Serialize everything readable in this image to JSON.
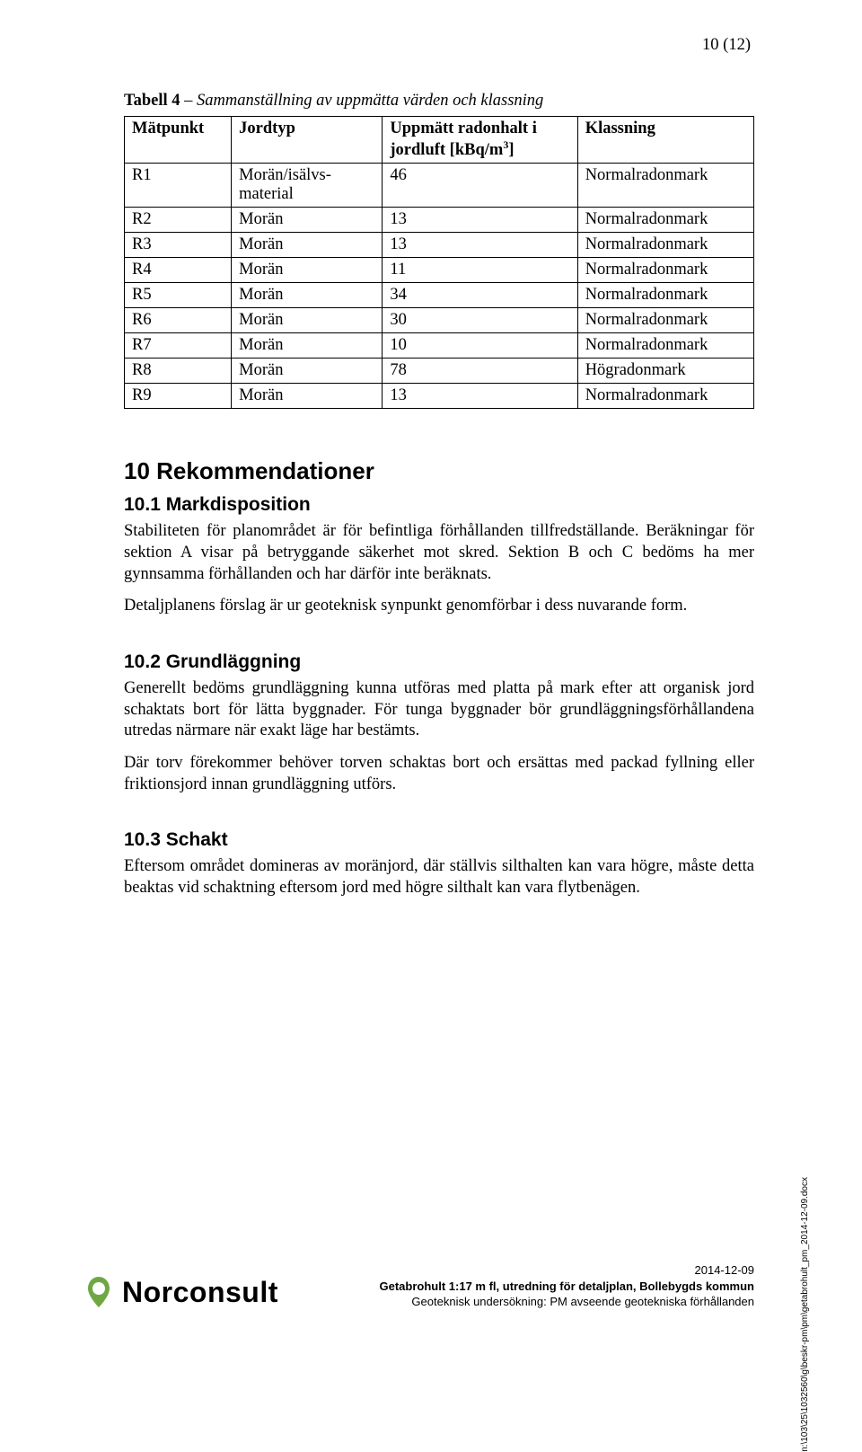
{
  "page_number": "10 (12)",
  "table_title_bold": "Tabell 4",
  "table_title_rest": " – Sammanställning av uppmätta värden och klassning",
  "table": {
    "headers": [
      "Mätpunkt",
      "Jordtyp",
      "Uppmätt radonhalt i jordluft [kBq/m",
      "Klassning"
    ],
    "sup": "3",
    "header_close": "]",
    "rows": [
      [
        "R1",
        "Morän/isälvs-material",
        "46",
        "Normalradonmark"
      ],
      [
        "R2",
        "Morän",
        "13",
        "Normalradonmark"
      ],
      [
        "R3",
        "Morän",
        "13",
        "Normalradonmark"
      ],
      [
        "R4",
        "Morän",
        "11",
        "Normalradonmark"
      ],
      [
        "R5",
        "Morän",
        "34",
        "Normalradonmark"
      ],
      [
        "R6",
        "Morän",
        "30",
        "Normalradonmark"
      ],
      [
        "R7",
        "Morän",
        "10",
        "Normalradonmark"
      ],
      [
        "R8",
        "Morän",
        "78",
        "Högradonmark"
      ],
      [
        "R9",
        "Morän",
        "13",
        "Normalradonmark"
      ]
    ]
  },
  "sec10": "10  Rekommendationer",
  "sec10_1": "10.1  Markdisposition",
  "p10_1a": "Stabiliteten för planområdet är för befintliga förhållanden tillfredställande. Beräkningar för sektion A visar på betryggande säkerhet mot skred. Sektion B och C bedöms ha mer gynnsamma förhållanden och har därför inte beräknats.",
  "p10_1b": "Detaljplanens förslag är ur geoteknisk synpunkt genomförbar i dess nuvarande form.",
  "sec10_2": "10.2  Grundläggning",
  "p10_2a": "Generellt bedöms grundläggning kunna utföras med platta på mark efter att organisk jord schaktats bort för lätta byggnader. För tunga byggnader bör grundläggningsförhållandena utredas närmare när exakt läge har bestämts.",
  "p10_2b": "Där torv förekommer behöver torven schaktas bort och ersättas med packad fyllning eller friktionsjord innan grundläggning utförs.",
  "sec10_3": "10.3  Schakt",
  "p10_3a": "Eftersom området domineras av moränjord, där ställvis silthalten kan vara högre, måste detta beaktas vid schaktning eftersom jord med högre silthalt kan vara flytbenägen.",
  "side_path": "n:\\103\\25\\1032560\\g\\beskr-pm\\pm\\getabrohult_pm_2014-12-09.docx",
  "footer": {
    "date": "2014-12-09",
    "title": "Getabrohult 1:17 m fl, utredning för detaljplan, Bollebygds kommun",
    "line2": "Geoteknisk undersökning: PM avseende geotekniska förhållanden"
  },
  "logo_text": "Norconsult",
  "colors": {
    "logo_green": "#6fa843",
    "text": "#000000",
    "bg": "#ffffff"
  }
}
